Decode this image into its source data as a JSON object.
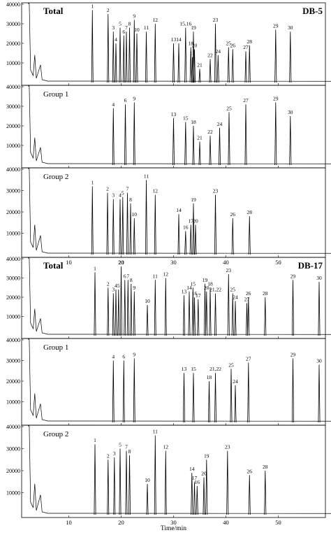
{
  "chart_data": {
    "type": "line",
    "xlabel": "Time/min",
    "x_ticks": [
      10,
      20,
      30,
      40,
      50
    ],
    "xlim": [
      1,
      59
    ],
    "ylim": [
      0,
      40000
    ],
    "y_ticks": [
      10000,
      20000,
      30000,
      40000
    ],
    "column_labels": [
      "DB-5",
      "DB-17"
    ],
    "panels": [
      {
        "title": "Total",
        "bold": true,
        "column": "DB-5",
        "peaks": [
          {
            "label": "1",
            "t": 14.5,
            "h": 37000
          },
          {
            "label": "2",
            "t": 17.5,
            "h": 35000
          },
          {
            "label": "3",
            "t": 18.5,
            "h": 26000
          },
          {
            "label": "4",
            "t": 19.0,
            "h": 20000
          },
          {
            "label": "5",
            "t": 19.8,
            "h": 28000
          },
          {
            "label": "6",
            "t": 20.5,
            "h": 24000
          },
          {
            "label": "7",
            "t": 21.0,
            "h": 26000
          },
          {
            "label": "8",
            "t": 21.6,
            "h": 28000
          },
          {
            "label": "9",
            "t": 22.5,
            "h": 32000
          },
          {
            "label": "10",
            "t": 23.0,
            "h": 25000
          },
          {
            "label": "11",
            "t": 24.8,
            "h": 26000
          },
          {
            "label": "12",
            "t": 26.5,
            "h": 30000
          },
          {
            "label": "13",
            "t": 30.0,
            "h": 20000
          },
          {
            "label": "14",
            "t": 31.0,
            "h": 20000
          },
          {
            "label": "15,16",
            "t": 32.3,
            "h": 28000
          },
          {
            "label": "19",
            "t": 33.8,
            "h": 26000
          },
          {
            "label": "18",
            "t": 33.3,
            "h": 18000
          },
          {
            "label": "20",
            "t": 34.0,
            "h": 17000
          },
          {
            "label": "17",
            "t": 33.6,
            "h": 13000
          },
          {
            "label": "21",
            "t": 35.0,
            "h": 7000
          },
          {
            "label": "23",
            "t": 38.0,
            "h": 30000
          },
          {
            "label": "22",
            "t": 37.0,
            "h": 12000
          },
          {
            "label": "24",
            "t": 38.5,
            "h": 14000
          },
          {
            "label": "25",
            "t": 40.5,
            "h": 18000
          },
          {
            "label": "26",
            "t": 41.3,
            "h": 17000
          },
          {
            "label": "27",
            "t": 43.8,
            "h": 16000
          },
          {
            "label": "28",
            "t": 44.5,
            "h": 19000
          },
          {
            "label": "29",
            "t": 49.5,
            "h": 27000
          },
          {
            "label": "30",
            "t": 52.3,
            "h": 26000
          }
        ]
      },
      {
        "title": "Group 1",
        "bold": false,
        "column": "DB-5",
        "peaks": [
          {
            "label": "4",
            "t": 18.5,
            "h": 29000
          },
          {
            "label": "6",
            "t": 20.8,
            "h": 31000
          },
          {
            "label": "9",
            "t": 22.5,
            "h": 32000
          },
          {
            "label": "13",
            "t": 30.0,
            "h": 24000
          },
          {
            "label": "15",
            "t": 32.3,
            "h": 22000
          },
          {
            "label": "18",
            "t": 33.8,
            "h": 20000
          },
          {
            "label": "21",
            "t": 35.0,
            "h": 12000
          },
          {
            "label": "22",
            "t": 37.0,
            "h": 15000
          },
          {
            "label": "24",
            "t": 38.8,
            "h": 19000
          },
          {
            "label": "25",
            "t": 40.6,
            "h": 27000
          },
          {
            "label": "27",
            "t": 43.8,
            "h": 31000
          },
          {
            "label": "29",
            "t": 49.5,
            "h": 32000
          },
          {
            "label": "30",
            "t": 52.3,
            "h": 25000
          }
        ]
      },
      {
        "title": "Group 2",
        "bold": false,
        "column": "DB-5",
        "peaks": [
          {
            "label": "1",
            "t": 14.5,
            "h": 32000
          },
          {
            "label": "2",
            "t": 17.4,
            "h": 29000
          },
          {
            "label": "3",
            "t": 18.5,
            "h": 26000
          },
          {
            "label": "4",
            "t": 19.8,
            "h": 26000
          },
          {
            "label": "5",
            "t": 20.3,
            "h": 27000
          },
          {
            "label": "7",
            "t": 21.2,
            "h": 29000
          },
          {
            "label": "8",
            "t": 21.8,
            "h": 24000
          },
          {
            "label": "10",
            "t": 22.5,
            "h": 17000
          },
          {
            "label": "11",
            "t": 24.8,
            "h": 35000
          },
          {
            "label": "12",
            "t": 26.5,
            "h": 28000
          },
          {
            "label": "14",
            "t": 31.0,
            "h": 19000
          },
          {
            "label": "16",
            "t": 32.3,
            "h": 11000
          },
          {
            "label": "17",
            "t": 33.3,
            "h": 14000
          },
          {
            "label": "19",
            "t": 33.8,
            "h": 24000
          },
          {
            "label": "20",
            "t": 34.2,
            "h": 14000
          },
          {
            "label": "23",
            "t": 38.0,
            "h": 28000
          },
          {
            "label": "26",
            "t": 41.3,
            "h": 17000
          },
          {
            "label": "28",
            "t": 44.5,
            "h": 18000
          }
        ]
      },
      {
        "title": "Total",
        "bold": true,
        "column": "DB-17",
        "peaks": [
          {
            "label": "1",
            "t": 15.0,
            "h": 33000
          },
          {
            "label": "2",
            "t": 17.5,
            "h": 25000
          },
          {
            "label": "3",
            "t": 18.5,
            "h": 22000
          },
          {
            "label": "4",
            "t": 19.0,
            "h": 24000
          },
          {
            "label": "5",
            "t": 19.5,
            "h": 24000
          },
          {
            "label": "20",
            "t": 20.0,
            "h": 36000
          },
          {
            "label": "6",
            "t": 20.7,
            "h": 29000
          },
          {
            "label": "7",
            "t": 21.3,
            "h": 29000
          },
          {
            "label": "8",
            "t": 21.9,
            "h": 27000
          },
          {
            "label": "9",
            "t": 22.5,
            "h": 23000
          },
          {
            "label": "10",
            "t": 25.0,
            "h": 16000
          },
          {
            "label": "11",
            "t": 26.5,
            "h": 29000
          },
          {
            "label": "12",
            "t": 28.5,
            "h": 30000
          },
          {
            "label": "13",
            "t": 32.0,
            "h": 21000
          },
          {
            "label": "14",
            "t": 33.0,
            "h": 23000
          },
          {
            "label": "15",
            "t": 33.7,
            "h": 25000
          },
          {
            "label": "16",
            "t": 34.0,
            "h": 20000
          },
          {
            "label": "17",
            "t": 34.7,
            "h": 19000
          },
          {
            "label": "19",
            "t": 36.0,
            "h": 27000
          },
          {
            "label": "20",
            "t": 36.3,
            "h": 23000
          },
          {
            "label": "18",
            "t": 37.0,
            "h": 25000
          },
          {
            "label": "21,22",
            "t": 38.0,
            "h": 22000
          },
          {
            "label": "23",
            "t": 40.5,
            "h": 32000
          },
          {
            "label": "25",
            "t": 41.3,
            "h": 22000
          },
          {
            "label": "24",
            "t": 41.8,
            "h": 18000
          },
          {
            "label": "26",
            "t": 44.3,
            "h": 20000
          },
          {
            "label": "27",
            "t": 44.0,
            "h": 17000
          },
          {
            "label": "28",
            "t": 47.5,
            "h": 20000
          },
          {
            "label": "29",
            "t": 52.8,
            "h": 29000
          },
          {
            "label": "30",
            "t": 57.8,
            "h": 28000
          }
        ]
      },
      {
        "title": "Group 1",
        "bold": false,
        "column": "DB-17",
        "peaks": [
          {
            "label": "4",
            "t": 18.5,
            "h": 30000
          },
          {
            "label": "6",
            "t": 20.5,
            "h": 30000
          },
          {
            "label": "9",
            "t": 22.5,
            "h": 31000
          },
          {
            "label": "13",
            "t": 32.0,
            "h": 24000
          },
          {
            "label": "15",
            "t": 33.8,
            "h": 24000
          },
          {
            "label": "18",
            "t": 36.8,
            "h": 20000
          },
          {
            "label": "21,22",
            "t": 38.0,
            "h": 24000
          },
          {
            "label": "25",
            "t": 41.0,
            "h": 26000
          },
          {
            "label": "24",
            "t": 41.8,
            "h": 18000
          },
          {
            "label": "27",
            "t": 44.3,
            "h": 29000
          },
          {
            "label": "29",
            "t": 52.8,
            "h": 31000
          },
          {
            "label": "30",
            "t": 57.8,
            "h": 28000
          }
        ]
      },
      {
        "title": "Group 2",
        "bold": false,
        "column": "DB-17",
        "peaks": [
          {
            "label": "1",
            "t": 15.0,
            "h": 32000
          },
          {
            "label": "2",
            "t": 17.5,
            "h": 25000
          },
          {
            "label": "3",
            "t": 18.7,
            "h": 26000
          },
          {
            "label": "5",
            "t": 19.8,
            "h": 30000
          },
          {
            "label": "7",
            "t": 21.0,
            "h": 29000
          },
          {
            "label": "8",
            "t": 21.6,
            "h": 27000
          },
          {
            "label": "10",
            "t": 25.0,
            "h": 14000
          },
          {
            "label": "11",
            "t": 26.5,
            "h": 36000
          },
          {
            "label": "12",
            "t": 28.5,
            "h": 29000
          },
          {
            "label": "14",
            "t": 33.5,
            "h": 19000
          },
          {
            "label": "17",
            "t": 34.0,
            "h": 15000
          },
          {
            "label": "16",
            "t": 34.5,
            "h": 13000
          },
          {
            "label": "20",
            "t": 35.8,
            "h": 17000
          },
          {
            "label": "19",
            "t": 36.3,
            "h": 25000
          },
          {
            "label": "23",
            "t": 40.3,
            "h": 29000
          },
          {
            "label": "26",
            "t": 44.5,
            "h": 18000
          },
          {
            "label": "28",
            "t": 47.5,
            "h": 20000
          }
        ]
      }
    ]
  }
}
